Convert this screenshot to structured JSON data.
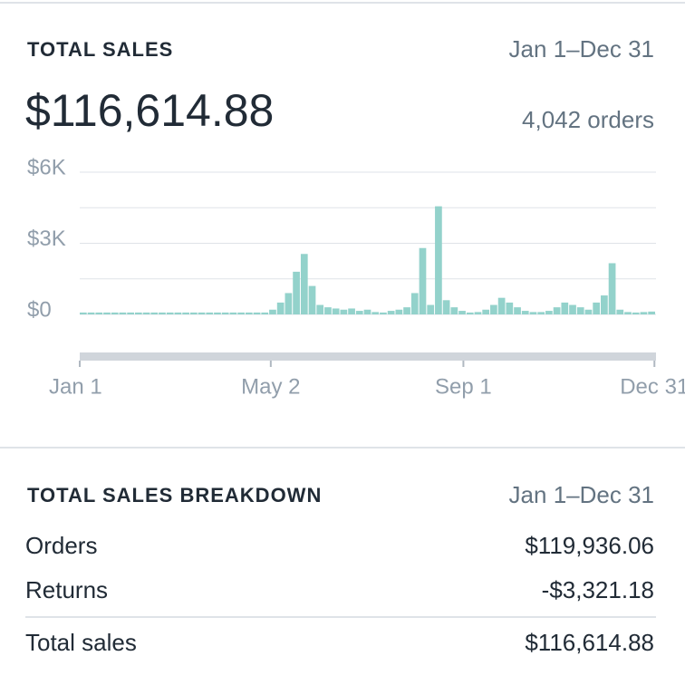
{
  "summary": {
    "title": "TOTAL SALES",
    "date_range": "Jan 1–Dec 31",
    "total": "$116,614.88",
    "orders": "4,042 orders"
  },
  "chart_data": {
    "type": "bar",
    "color": "#93d2cb",
    "grid": true,
    "x": [
      0,
      5,
      10,
      15,
      20,
      25,
      30,
      35,
      40,
      45,
      50,
      55,
      60,
      65,
      70,
      75,
      80,
      85,
      90,
      95,
      100,
      105,
      110,
      115,
      120,
      125,
      130,
      135,
      140,
      145,
      150,
      155,
      160,
      165,
      170,
      175,
      180,
      185,
      190,
      195,
      200,
      205,
      210,
      215,
      220,
      225,
      230,
      235,
      240,
      245,
      250,
      255,
      260,
      265,
      270,
      275,
      280,
      285,
      290,
      295,
      300,
      305,
      310,
      315,
      320,
      325,
      330,
      335,
      340,
      345,
      350,
      355,
      360
    ],
    "values": [
      80,
      80,
      80,
      80,
      80,
      80,
      80,
      80,
      80,
      80,
      80,
      80,
      80,
      80,
      80,
      80,
      80,
      80,
      80,
      80,
      80,
      80,
      80,
      80,
      200,
      500,
      900,
      1800,
      2550,
      1200,
      400,
      300,
      250,
      200,
      250,
      150,
      200,
      100,
      80,
      150,
      200,
      300,
      900,
      2800,
      400,
      4560,
      600,
      300,
      150,
      80,
      100,
      200,
      400,
      700,
      500,
      300,
      150,
      100,
      100,
      150,
      300,
      500,
      400,
      300,
      200,
      500,
      800,
      2160,
      200,
      100,
      80,
      100,
      120
    ],
    "xlim": [
      0,
      365
    ],
    "xticks": [
      {
        "value": 0,
        "label": "Jan 1"
      },
      {
        "value": 121,
        "label": "May 2"
      },
      {
        "value": 243,
        "label": "Sep 1"
      },
      {
        "value": 364,
        "label": "Dec 31"
      }
    ],
    "ylim": [
      0,
      6000
    ],
    "yticks": [
      {
        "value": 0,
        "label": "$0"
      },
      {
        "value": 3000,
        "label": "$3K"
      },
      {
        "value": 6000,
        "label": "$6K"
      }
    ],
    "minor_yticks": [
      1500,
      4500
    ]
  },
  "breakdown": {
    "title": "TOTAL SALES BREAKDOWN",
    "date_range": "Jan 1–Dec 31",
    "rows": [
      [
        "Orders",
        "$119,936.06"
      ],
      [
        "Returns",
        "-$3,321.18"
      ],
      [
        "Total sales",
        "$116,614.88"
      ]
    ]
  }
}
